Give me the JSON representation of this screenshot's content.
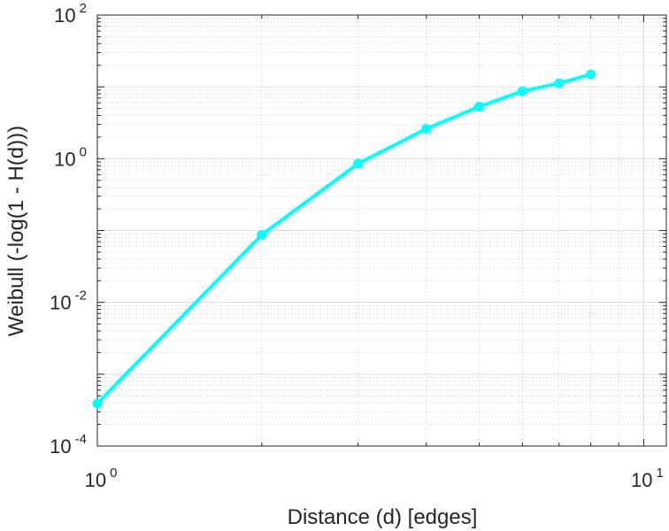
{
  "chart_data": {
    "type": "line",
    "title": "",
    "xlabel": "Distance (d) [edges]",
    "ylabel": "Weibull (-log(1 - H(d)))",
    "xscale": "log",
    "yscale": "log",
    "xlim": [
      1,
      11
    ],
    "ylim": [
      0.0001,
      100
    ],
    "grid": true,
    "minor_grid": true,
    "x_ticks": [
      {
        "base": "10",
        "exp": "0",
        "value": 1
      },
      {
        "base": "10",
        "exp": "1",
        "value": 10
      }
    ],
    "y_ticks": [
      {
        "base": "10",
        "exp": "-4",
        "value": 0.0001
      },
      {
        "base": "10",
        "exp": "-2",
        "value": 0.01
      },
      {
        "base": "10",
        "exp": "0",
        "value": 1
      },
      {
        "base": "10",
        "exp": "2",
        "value": 100
      }
    ],
    "series": [
      {
        "name": "Weibull",
        "color": "#00ffff",
        "marker": "circle",
        "x": [
          1,
          2,
          3,
          4,
          5,
          6,
          7,
          8
        ],
        "y": [
          0.00039,
          0.087,
          0.85,
          2.6,
          5.3,
          8.7,
          11.2,
          14.9
        ]
      }
    ]
  }
}
